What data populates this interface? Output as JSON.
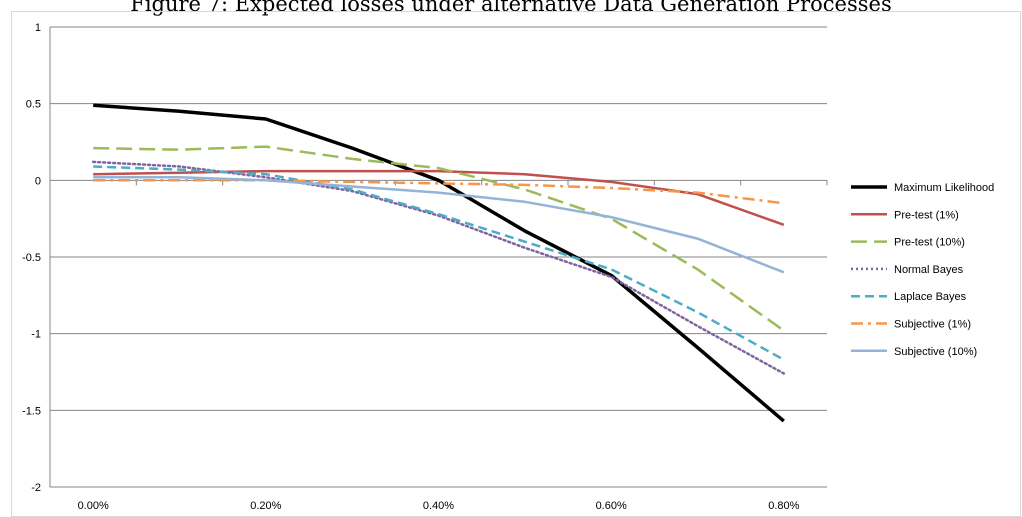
{
  "title": "Figure 7: Expected losses under alternative Data Generation Processes",
  "chart_data": {
    "type": "line",
    "categories": [
      "0.00%",
      "0.10%",
      "0.20%",
      "0.30%",
      "0.40%",
      "0.50%",
      "0.60%",
      "0.70%",
      "0.80%"
    ],
    "x_tick_labels": [
      "0.00%",
      "0.20%",
      "0.40%",
      "0.60%",
      "0.80%"
    ],
    "y_tick_labels": [
      "1",
      "0.5",
      "0",
      "-0.5",
      "-1",
      "-1.5",
      "-2"
    ],
    "ylim": [
      -2,
      1
    ],
    "grid": true,
    "legend_position": "right",
    "series": [
      {
        "name": "Maximum Likelihood",
        "color": "#000000",
        "dash": "solid",
        "width": 3.5,
        "values": [
          0.49,
          0.45,
          0.4,
          0.21,
          0.0,
          -0.33,
          -0.62,
          -1.09,
          -1.57
        ]
      },
      {
        "name": "Pre-test (1%)",
        "color": "#c0504d",
        "dash": "solid",
        "width": 2.5,
        "values": [
          0.04,
          0.05,
          0.06,
          0.06,
          0.06,
          0.04,
          -0.01,
          -0.09,
          -0.29
        ]
      },
      {
        "name": "Pre-test (10%)",
        "color": "#9bbb59",
        "dash": "longdash",
        "width": 2.5,
        "values": [
          0.21,
          0.2,
          0.22,
          0.14,
          0.08,
          -0.06,
          -0.25,
          -0.58,
          -0.98
        ]
      },
      {
        "name": "Normal Bayes",
        "color": "#8064a2",
        "dash": "dot",
        "width": 2.5,
        "values": [
          0.12,
          0.09,
          0.02,
          -0.07,
          -0.23,
          -0.44,
          -0.63,
          -0.95,
          -1.26
        ]
      },
      {
        "name": "Laplace Bayes",
        "color": "#4bacc6",
        "dash": "dash",
        "width": 2.5,
        "values": [
          0.09,
          0.07,
          0.04,
          -0.06,
          -0.22,
          -0.4,
          -0.58,
          -0.86,
          -1.17
        ]
      },
      {
        "name": "Subjective (1%)",
        "color": "#f79646",
        "dash": "dashdot",
        "width": 2.5,
        "values": [
          0.0,
          0.0,
          0.0,
          -0.01,
          -0.02,
          -0.03,
          -0.05,
          -0.08,
          -0.15
        ]
      },
      {
        "name": "Subjective (10%)",
        "color": "#95b3d7",
        "dash": "solid",
        "width": 2.5,
        "values": [
          0.02,
          0.02,
          0.0,
          -0.04,
          -0.08,
          -0.14,
          -0.24,
          -0.38,
          -0.6
        ]
      }
    ]
  }
}
